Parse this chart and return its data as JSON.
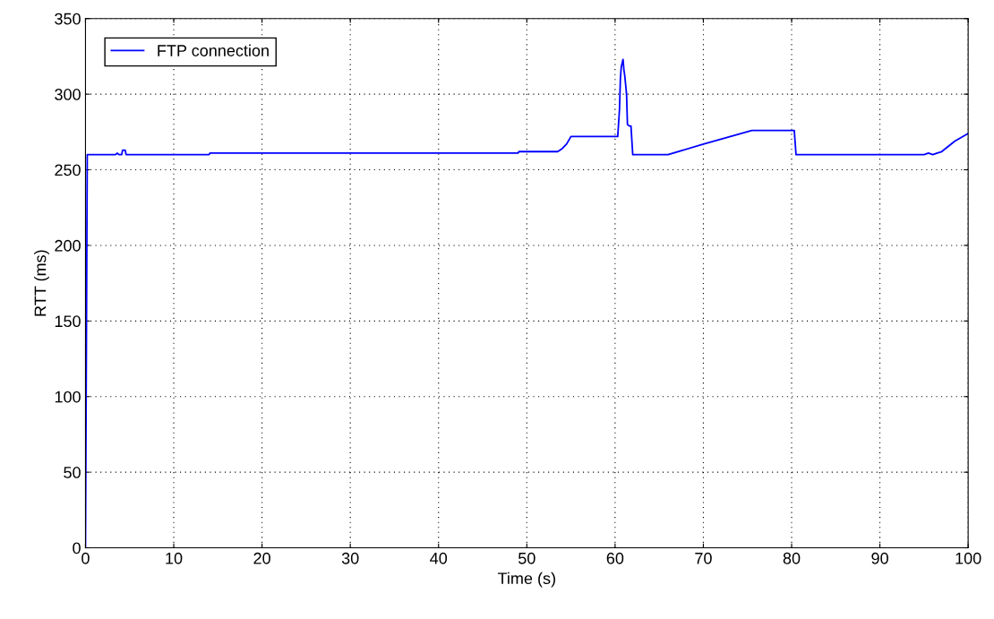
{
  "chart_data": {
    "type": "line",
    "xlabel": "Time (s)",
    "ylabel": "RTT (ms)",
    "series": [
      {
        "name": "FTP connection",
        "color": "#0000ff",
        "x": [
          0,
          0.2,
          3.4,
          3.6,
          3.8,
          4.1,
          4.2,
          4.5,
          4.6,
          14,
          14.1,
          49,
          49.1,
          53.5,
          54,
          54.5,
          55,
          60.3,
          60.5,
          60.6,
          60.7,
          60.9,
          61.0,
          61.1,
          61.3,
          61.4,
          61.6,
          61.8,
          62.0,
          66,
          70,
          75.5,
          80.3,
          80.5,
          95,
          95.5,
          96,
          96.5,
          97,
          98.5,
          100
        ],
        "values": [
          0,
          260,
          260,
          261,
          260,
          260,
          263,
          263,
          260,
          260,
          261,
          261,
          262,
          262,
          264,
          267,
          272,
          272,
          290,
          310,
          318,
          323,
          316,
          312,
          300,
          280,
          279,
          279,
          260,
          260,
          267,
          276,
          276,
          260,
          260,
          261,
          260,
          261,
          262,
          269,
          274
        ]
      }
    ],
    "xlim": [
      0,
      100
    ],
    "ylim": [
      0,
      350
    ],
    "xticks": [
      0,
      10,
      20,
      30,
      40,
      50,
      60,
      70,
      80,
      90,
      100
    ],
    "yticks": [
      0,
      50,
      100,
      150,
      200,
      250,
      300,
      350
    ],
    "grid": true,
    "legend": "top left"
  }
}
